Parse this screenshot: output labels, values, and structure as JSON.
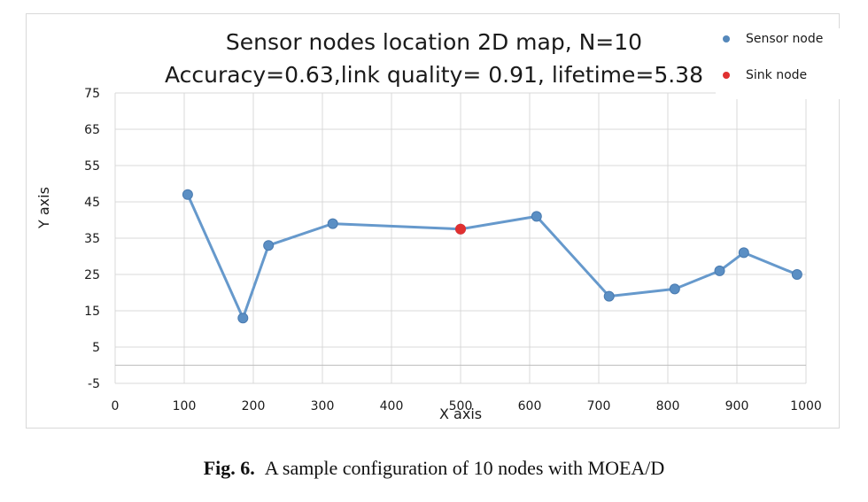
{
  "chart_data": {
    "type": "line",
    "title_line1": "Sensor nodes location 2D map, N=10",
    "title_line2": "Accuracy=0.63,link quality= 0.91, lifetime=5.38",
    "xlabel": "X axis",
    "ylabel": "Y axis",
    "xlim": [
      0,
      1000
    ],
    "ylim": [
      -5,
      75
    ],
    "x_ticks": [
      "0",
      "100",
      "200",
      "300",
      "400",
      "500",
      "600",
      "700",
      "800",
      "900",
      "1000"
    ],
    "y_ticks": [
      "-5",
      "5",
      "15",
      "25",
      "35",
      "45",
      "55",
      "65",
      "75"
    ],
    "grid": true,
    "legend_position": "top-right",
    "series": [
      {
        "name": "Sensor node",
        "color": "#6699cc",
        "x": [
          105,
          185,
          222,
          315,
          500,
          610,
          715,
          810,
          875,
          910,
          987
        ],
        "y": [
          47,
          13,
          33,
          39,
          37.5,
          41,
          19,
          21,
          26,
          31,
          25
        ]
      },
      {
        "name": "Sink node",
        "color": "#e03030",
        "x": [
          500
        ],
        "y": [
          37.5
        ]
      }
    ]
  },
  "caption": {
    "label": "Fig. 6.",
    "text": "A sample configuration of 10 nodes with MOEA/D"
  }
}
